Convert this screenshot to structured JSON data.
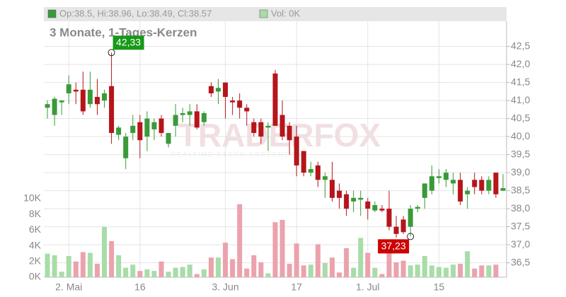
{
  "chart_data": {
    "type": "candlestick",
    "header": "Op:38.5, Hi:38.96, Lo:38.49, Cl:38.57",
    "volume_header": "Vol: 0K",
    "subtitle": "3 Monate, 1-Tages-Kerzen",
    "watermark": "TRADERFOX",
    "watermark_sub": "REALTIME STOCK SCREENER",
    "categories": [
      null,
      null,
      null,
      "2. Mai",
      null,
      null,
      null,
      null,
      null,
      null,
      null,
      null,
      null,
      "16",
      null,
      null,
      null,
      null,
      null,
      null,
      null,
      null,
      null,
      null,
      null,
      "3. Jun",
      null,
      null,
      null,
      null,
      null,
      null,
      null,
      null,
      null,
      "17",
      null,
      null,
      null,
      null,
      null,
      null,
      null,
      null,
      null,
      "1. Jul",
      null,
      null,
      null,
      null,
      null,
      null,
      null,
      null,
      null,
      "15",
      null,
      null,
      null,
      null,
      null,
      null,
      null,
      null,
      null
    ],
    "open": [
      40.8,
      40.6,
      40.95,
      41.2,
      41.3,
      41.3,
      40.9,
      41.1,
      41.0,
      41.4,
      40.05,
      39.4,
      40.1,
      40.4,
      40.0,
      40.2,
      40.5,
      39.8,
      40.3,
      40.6,
      40.6,
      40.7,
      40.4,
      41.4,
      41.25,
      41.5,
      41.0,
      41.0,
      40.8,
      40.4,
      40.4,
      40.25,
      41.75,
      40.6,
      40.3,
      40.0,
      39.6,
      39.0,
      39.2,
      38.8,
      38.8,
      38.5,
      38.4,
      38.2,
      38.25,
      38.2,
      37.95,
      38.0,
      38.0,
      37.5,
      37.7,
      37.5,
      38.0,
      38.3,
      38.5,
      38.85,
      38.8,
      38.7,
      38.8,
      38.4,
      38.8,
      38.8,
      38.5,
      39.0,
      38.5
    ],
    "high": [
      41.0,
      41.1,
      41.0,
      41.7,
      41.5,
      41.8,
      41.8,
      41.6,
      41.3,
      42.33,
      40.3,
      40.1,
      40.6,
      40.6,
      40.7,
      40.5,
      40.6,
      40.1,
      40.9,
      40.8,
      40.9,
      40.9,
      40.7,
      41.5,
      41.6,
      41.5,
      41.1,
      41.2,
      40.9,
      40.5,
      40.5,
      40.4,
      41.85,
      41.0,
      40.4,
      40.3,
      39.6,
      39.3,
      39.3,
      39.0,
      39.3,
      38.7,
      38.5,
      38.5,
      38.5,
      38.3,
      38.2,
      38.1,
      38.5,
      37.8,
      37.8,
      38.1,
      38.1,
      38.7,
      39.2,
      39.1,
      39.1,
      39.0,
      39.0,
      38.6,
      39.0,
      38.9,
      38.9,
      39.0,
      38.96
    ],
    "low": [
      40.5,
      40.3,
      40.6,
      40.9,
      40.9,
      40.6,
      40.8,
      40.6,
      40.8,
      39.8,
      39.9,
      39.1,
      39.9,
      39.4,
      39.6,
      39.9,
      40.0,
      39.7,
      40.0,
      40.4,
      40.3,
      40.2,
      40.3,
      41.1,
      40.9,
      40.5,
      40.6,
      40.5,
      40.3,
      40.0,
      39.8,
      39.6,
      40.3,
      39.9,
      39.5,
      38.9,
      38.9,
      38.9,
      38.6,
      38.3,
      38.2,
      38.0,
      37.8,
      37.9,
      37.8,
      37.7,
      37.9,
      37.9,
      37.4,
      37.2,
      37.3,
      37.23,
      37.9,
      38.0,
      38.4,
      38.7,
      38.6,
      38.4,
      38.1,
      38.0,
      38.4,
      38.4,
      38.4,
      38.3,
      38.49
    ],
    "close": [
      40.9,
      41.05,
      41.0,
      41.45,
      41.25,
      40.7,
      41.3,
      40.9,
      41.2,
      40.1,
      40.25,
      40.0,
      40.3,
      39.9,
      40.5,
      40.4,
      40.1,
      40.1,
      40.6,
      40.65,
      40.7,
      40.25,
      40.65,
      41.2,
      41.35,
      41.1,
      40.95,
      40.8,
      40.7,
      40.1,
      40.0,
      40.3,
      40.3,
      40.0,
      39.9,
      39.2,
      39.0,
      39.1,
      38.8,
      38.9,
      38.3,
      38.3,
      38.0,
      38.3,
      38.3,
      38.0,
      38.1,
      37.95,
      37.5,
      37.3,
      37.35,
      38.0,
      38.05,
      38.7,
      38.9,
      38.9,
      39.0,
      38.8,
      38.2,
      38.5,
      38.6,
      38.5,
      38.8,
      38.4,
      38.57
    ],
    "volume": [
      3.0,
      2.8,
      0.7,
      2.7,
      2.0,
      3.2,
      3.1,
      1.7,
      6.4,
      4.6,
      2.8,
      1.2,
      1.6,
      0.8,
      1.0,
      0.8,
      2.0,
      0.7,
      1.2,
      1.3,
      1.6,
      0.4,
      1.0,
      2.5,
      2.5,
      4.4,
      2.3,
      9.3,
      1.1,
      2.8,
      1.9,
      0.5,
      7.0,
      7.3,
      1.7,
      4.3,
      1.5,
      1.6,
      4.2,
      1.8,
      2.5,
      0.6,
      3.7,
      1.2,
      5.0,
      3.1,
      1.2,
      0.4,
      3.7,
      1.9,
      2.1,
      1.5,
      1.6,
      2.7,
      1.5,
      1.3,
      1.2,
      1.6,
      1.7,
      3.3,
      1.1,
      1.5,
      1.5,
      1.6,
      0
    ],
    "up_color": "#3a9a3a",
    "down_color": "#b5151b",
    "up_volume_color": "#a8dca8",
    "down_volume_color": "#eba2ac",
    "ylim": [
      36.1,
      43.2
    ],
    "yticks": [
      {
        "value": 36.5,
        "label": "36,5"
      },
      {
        "value": 37,
        "label": "37,0"
      },
      {
        "value": 37.5,
        "label": "37,5"
      },
      {
        "value": 38,
        "label": "38,0"
      },
      {
        "value": 38.5,
        "label": "38,5"
      },
      {
        "value": 39,
        "label": "39,0"
      },
      {
        "value": 39.5,
        "label": "39,5"
      },
      {
        "value": 40,
        "label": "40,0"
      },
      {
        "value": 40.5,
        "label": "40,5"
      },
      {
        "value": 41,
        "label": "41,0"
      },
      {
        "value": 41.5,
        "label": "41,5"
      },
      {
        "value": 42,
        "label": "42,0"
      },
      {
        "value": 42.5,
        "label": "42,5"
      }
    ],
    "y2lim": [
      0,
      32.6
    ],
    "y2ticks": [
      {
        "value": 0,
        "label": "0K"
      },
      {
        "value": 2,
        "label": "2K"
      },
      {
        "value": 4,
        "label": "4K"
      },
      {
        "value": 6,
        "label": "6K"
      },
      {
        "value": 8,
        "label": "8K"
      },
      {
        "value": 10,
        "label": "10K"
      }
    ],
    "annotations": [
      {
        "index": 9,
        "value": 42.33,
        "label": "42,33",
        "color": "#179917"
      },
      {
        "index": 51,
        "value": 37.23,
        "label": "37,23",
        "color": "#cc0000"
      }
    ],
    "grid": true
  }
}
